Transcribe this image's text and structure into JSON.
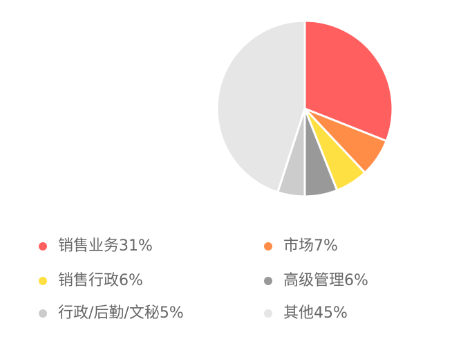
{
  "chart_data": {
    "type": "pie",
    "title": "",
    "legend_position": "bottom",
    "slices": [
      {
        "label": "销售业务",
        "value": 31,
        "display": "销售业务31%",
        "color": "#FF5F5F"
      },
      {
        "label": "市场",
        "value": 7,
        "display": "市场7%",
        "color": "#FF8C47"
      },
      {
        "label": "销售行政",
        "value": 6,
        "display": "销售行政6%",
        "color": "#FFE043"
      },
      {
        "label": "高级管理",
        "value": 6,
        "display": "高级管理6%",
        "color": "#999999"
      },
      {
        "label": "行政/后勤/文秘",
        "value": 5,
        "display": "行政/后勤/文秘5%",
        "color": "#CCCCCC"
      },
      {
        "label": "其他",
        "value": 45,
        "display": "其他45%",
        "color": "#E6E6E6"
      }
    ]
  }
}
